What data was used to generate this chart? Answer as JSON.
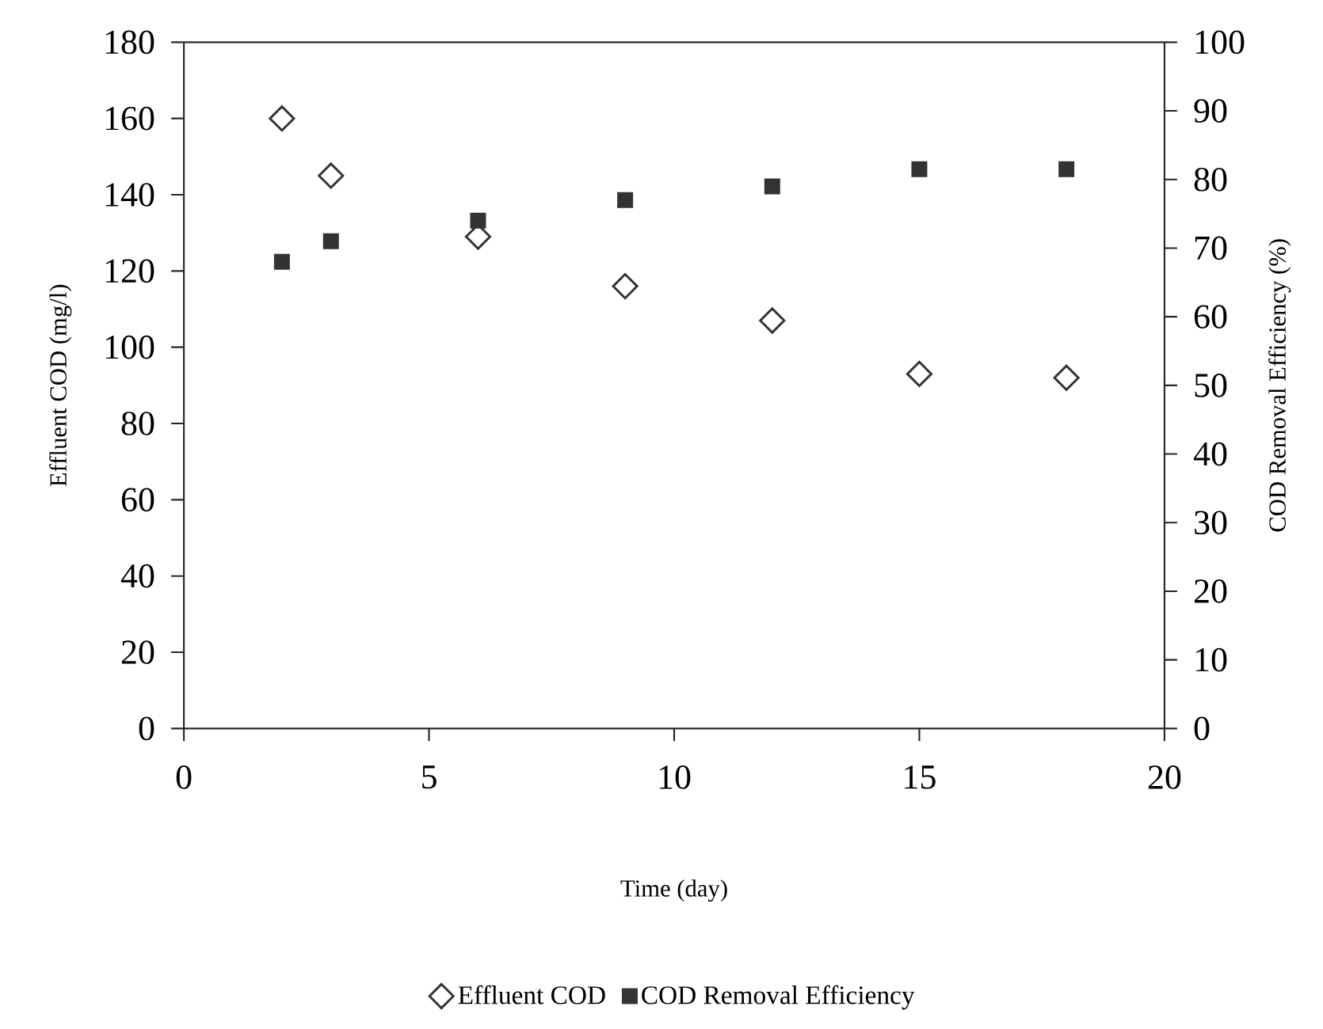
{
  "chart_data": {
    "type": "scatter",
    "xlabel": "Time (day)",
    "ylabel": "Effluent COD (mg/l)",
    "y2label": "COD Removal Efficiency (%)",
    "xlim": [
      0,
      20
    ],
    "xticks": [
      0,
      5,
      10,
      15,
      20
    ],
    "ylim": [
      0,
      180
    ],
    "yticks": [
      0,
      20,
      40,
      60,
      80,
      100,
      120,
      140,
      160,
      180
    ],
    "y2lim": [
      0,
      100
    ],
    "y2ticks": [
      0,
      10,
      20,
      30,
      40,
      50,
      60,
      70,
      80,
      90,
      100
    ],
    "grid": false,
    "legend": "bottom",
    "series": [
      {
        "name": "Effluent COD",
        "color": "#333333",
        "marker": "diamond",
        "x": [
          2,
          3,
          6,
          9,
          12,
          15,
          18
        ],
        "values": [
          160,
          145,
          129,
          116,
          107,
          93,
          92
        ]
      },
      {
        "name": "COD Removal Efficiency",
        "color": "#333333",
        "marker": "square",
        "axis": "y2",
        "x": [
          2,
          3,
          6,
          9,
          12,
          15,
          18
        ],
        "values": [
          68,
          71,
          74,
          77,
          79,
          81.5,
          81.5
        ]
      }
    ]
  }
}
